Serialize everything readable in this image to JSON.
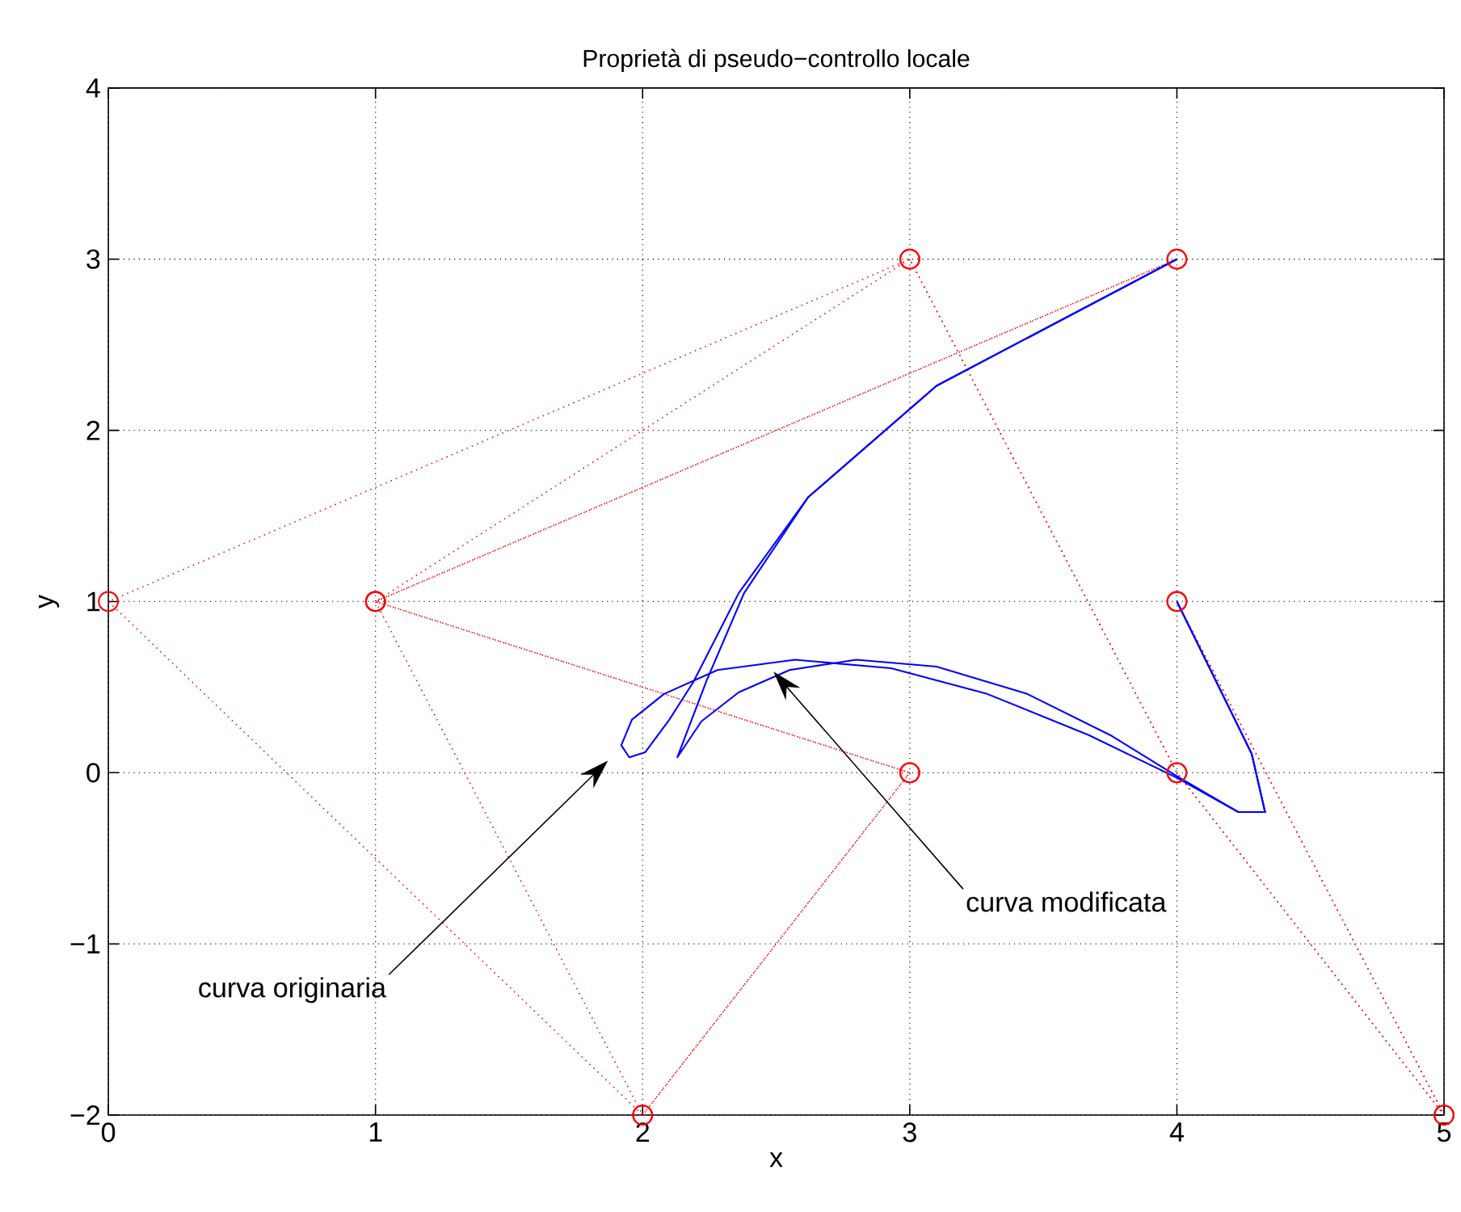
{
  "chart_data": {
    "type": "line",
    "title": "Proprietà di pseudo−controllo locale",
    "xlabel": "x",
    "ylabel": "y",
    "xlim": [
      0,
      5
    ],
    "ylim": [
      -2,
      4
    ],
    "xticks": [
      0,
      1,
      2,
      3,
      4,
      5
    ],
    "yticks": [
      {
        "value": -2,
        "label": "−2"
      },
      {
        "value": -1,
        "label": "−1"
      },
      0,
      1,
      2,
      3,
      4
    ],
    "grid": true,
    "series": [
      {
        "color": "#ff0000",
        "line_style": "dotted",
        "marker": "circle",
        "x": [
          4,
          5,
          4,
          3,
          0,
          2,
          3,
          1,
          4
        ],
        "values": [
          1,
          -2,
          0,
          3,
          1,
          -2,
          0,
          1,
          3
        ]
      },
      {
        "color": "#ff0000",
        "line_style": "dotted",
        "marker": "circle",
        "x": [
          4,
          5,
          4,
          3,
          1,
          2,
          3,
          1,
          4
        ],
        "values": [
          1,
          -2,
          0,
          3,
          1,
          -2,
          0,
          1,
          3
        ]
      },
      {
        "color": "#0000ff",
        "line_style": "solid",
        "marker": "none",
        "x": [
          4,
          4.28,
          4.33,
          4.23,
          4,
          3.67,
          3.29,
          2.93,
          2.57,
          2.28,
          2.08,
          1.96,
          1.92,
          1.95,
          2.01,
          2.1,
          2.19,
          2.36,
          2.62,
          3.1,
          4
        ],
        "values": [
          1,
          0.11,
          -0.23,
          -0.23,
          -0.03,
          0.22,
          0.46,
          0.61,
          0.66,
          0.6,
          0.46,
          0.31,
          0.16,
          0.09,
          0.12,
          0.31,
          0.53,
          1.05,
          1.61,
          2.26,
          3
        ]
      },
      {
        "color": "#0000ff",
        "line_style": "solid",
        "marker": "none",
        "x": [
          4,
          4.28,
          4.33,
          4.23,
          4,
          3.75,
          3.44,
          3.1,
          2.8,
          2.55,
          2.36,
          2.22,
          2.13,
          2.24,
          2.38,
          2.62,
          3.1,
          4
        ],
        "values": [
          1,
          0.11,
          -0.23,
          -0.23,
          -0.02,
          0.22,
          0.46,
          0.62,
          0.66,
          0.6,
          0.47,
          0.3,
          0.09,
          0.54,
          1.05,
          1.61,
          2.26,
          3
        ]
      }
    ],
    "annotations": [
      "curva originaria",
      "curva modificata"
    ]
  }
}
